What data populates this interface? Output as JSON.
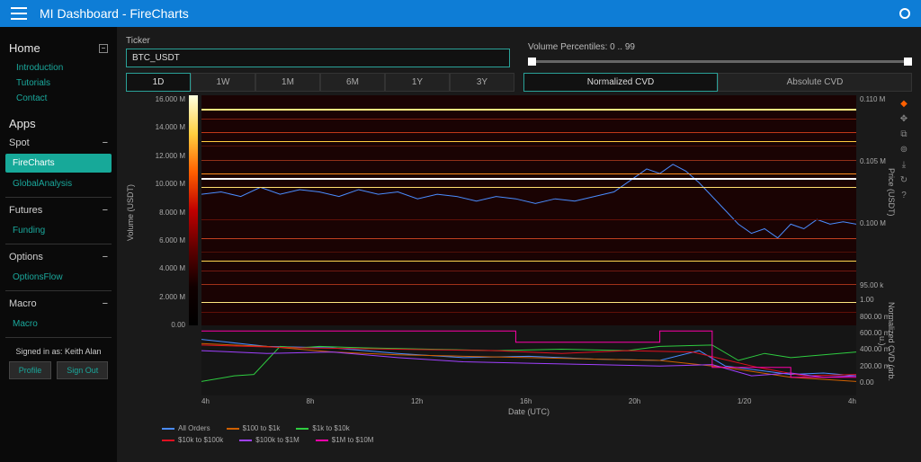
{
  "topbar": {
    "title": "MI Dashboard  -  FireCharts"
  },
  "sidebar": {
    "home_label": "Home",
    "home_links": [
      "Introduction",
      "Tutorials",
      "Contact"
    ],
    "apps_label": "Apps",
    "sections": [
      {
        "title": "Spot",
        "items": [
          {
            "label": "FireCharts",
            "active": true
          },
          {
            "label": "GlobalAnalysis",
            "active": false
          }
        ]
      },
      {
        "title": "Futures",
        "items": [
          {
            "label": "Funding",
            "active": false
          }
        ]
      },
      {
        "title": "Options",
        "items": [
          {
            "label": "OptionsFlow",
            "active": false
          }
        ]
      },
      {
        "title": "Macro",
        "items": [
          {
            "label": "Macro",
            "active": false
          }
        ]
      }
    ],
    "signed_in": "Signed in as: Keith Alan",
    "profile_btn": "Profile",
    "signout_btn": "Sign Out"
  },
  "controls": {
    "ticker_label": "Ticker",
    "ticker_value": "BTC_USDT",
    "vol_label": "Volume Percentiles: 0 .. 99",
    "timeframes": [
      "1D",
      "1W",
      "1M",
      "6M",
      "1Y",
      "3Y"
    ],
    "active_timeframe": "1D",
    "cvd_modes": [
      "Normalized CVD",
      "Absolute CVD"
    ],
    "active_cvd": "Normalized CVD"
  },
  "chart": {
    "left_axis_label": "Volume (USDT)",
    "right_axis_label_top": "Price (USDT)",
    "right_axis_label_bottom": "Normalized CVD (arb. u.)",
    "x_axis_label": "Date (UTC)",
    "volume_ticks": [
      "16.000 M",
      "14.000 M",
      "12.000 M",
      "10.000 M",
      "8.000 M",
      "6.000 M",
      "4.000 M",
      "2.000 M",
      "0.00"
    ],
    "price_ticks": [
      "0.110 M",
      "0.105 M",
      "0.100 M",
      "95.00 k"
    ],
    "cvd_ticks": [
      "1.00",
      "800.00 m",
      "600.00 m",
      "400.00 m",
      "200.00 m",
      "0.00"
    ],
    "x_ticks": [
      "4h",
      "8h",
      "12h",
      "16h",
      "20h",
      "1/20",
      "4h"
    ],
    "colorbar_stops": [
      "#ffffe0",
      "#ffd040",
      "#ff6000",
      "#c00000",
      "#600000",
      "#100000",
      "#000000"
    ],
    "heatmap_bg": "#1a0303",
    "heatmap_lines": [
      {
        "y": 6,
        "c": "#ffec80",
        "h": 2
      },
      {
        "y": 10,
        "c": "#802010",
        "h": 1
      },
      {
        "y": 16,
        "c": "#c03818",
        "h": 1
      },
      {
        "y": 20,
        "c": "#ffcc40",
        "h": 1
      },
      {
        "y": 22,
        "c": "#501008",
        "h": 1
      },
      {
        "y": 28,
        "c": "#903018",
        "h": 1
      },
      {
        "y": 34,
        "c": "#ff9020",
        "h": 1
      },
      {
        "y": 36,
        "c": "#ffffff",
        "h": 2
      },
      {
        "y": 40,
        "c": "#ffe070",
        "h": 1
      },
      {
        "y": 54,
        "c": "#601008",
        "h": 1
      },
      {
        "y": 62,
        "c": "#c04020",
        "h": 1
      },
      {
        "y": 68,
        "c": "#501008",
        "h": 1
      },
      {
        "y": 72,
        "c": "#ffd850",
        "h": 1
      },
      {
        "y": 76,
        "c": "#701810",
        "h": 1
      },
      {
        "y": 82,
        "c": "#a03018",
        "h": 1
      },
      {
        "y": 90,
        "c": "#ffe880",
        "h": 1
      },
      {
        "y": 94,
        "c": "#601008",
        "h": 1
      }
    ],
    "price_line_color": "#4a8cff",
    "price_line": [
      [
        0,
        43
      ],
      [
        3,
        42
      ],
      [
        6,
        44
      ],
      [
        9,
        40
      ],
      [
        12,
        43
      ],
      [
        15,
        41
      ],
      [
        18,
        42
      ],
      [
        21,
        44
      ],
      [
        24,
        41
      ],
      [
        27,
        43
      ],
      [
        30,
        42
      ],
      [
        33,
        45
      ],
      [
        36,
        43
      ],
      [
        39,
        44
      ],
      [
        42,
        46
      ],
      [
        45,
        44
      ],
      [
        48,
        45
      ],
      [
        51,
        47
      ],
      [
        54,
        45
      ],
      [
        57,
        46
      ],
      [
        60,
        44
      ],
      [
        63,
        42
      ],
      [
        66,
        36
      ],
      [
        68,
        32
      ],
      [
        70,
        34
      ],
      [
        72,
        30
      ],
      [
        74,
        33
      ],
      [
        76,
        38
      ],
      [
        78,
        44
      ],
      [
        80,
        50
      ],
      [
        82,
        56
      ],
      [
        84,
        60
      ],
      [
        86,
        58
      ],
      [
        88,
        62
      ],
      [
        90,
        56
      ],
      [
        92,
        58
      ],
      [
        94,
        54
      ],
      [
        96,
        56
      ],
      [
        98,
        55
      ],
      [
        100,
        56
      ]
    ],
    "cvd_series": [
      {
        "color": "#4a8cff",
        "pts": [
          [
            0,
            20
          ],
          [
            10,
            30
          ],
          [
            20,
            32
          ],
          [
            30,
            40
          ],
          [
            40,
            46
          ],
          [
            50,
            44
          ],
          [
            60,
            48
          ],
          [
            70,
            50
          ],
          [
            76,
            36
          ],
          [
            80,
            58
          ],
          [
            85,
            64
          ],
          [
            90,
            70
          ],
          [
            95,
            68
          ],
          [
            100,
            72
          ]
        ]
      },
      {
        "color": "#d06000",
        "pts": [
          [
            0,
            26
          ],
          [
            10,
            30
          ],
          [
            20,
            38
          ],
          [
            30,
            42
          ],
          [
            40,
            44
          ],
          [
            50,
            46
          ],
          [
            60,
            48
          ],
          [
            70,
            50
          ],
          [
            80,
            60
          ],
          [
            90,
            74
          ],
          [
            100,
            80
          ]
        ]
      },
      {
        "color": "#2ecc40",
        "pts": [
          [
            0,
            80
          ],
          [
            5,
            72
          ],
          [
            8,
            70
          ],
          [
            12,
            30
          ],
          [
            15,
            32
          ],
          [
            18,
            30
          ],
          [
            25,
            32
          ],
          [
            35,
            34
          ],
          [
            45,
            36
          ],
          [
            55,
            34
          ],
          [
            65,
            36
          ],
          [
            70,
            30
          ],
          [
            78,
            28
          ],
          [
            82,
            50
          ],
          [
            86,
            40
          ],
          [
            90,
            46
          ],
          [
            95,
            42
          ],
          [
            100,
            38
          ]
        ]
      },
      {
        "color": "#e01020",
        "pts": [
          [
            0,
            28
          ],
          [
            15,
            32
          ],
          [
            30,
            34
          ],
          [
            45,
            36
          ],
          [
            55,
            40
          ],
          [
            65,
            36
          ],
          [
            75,
            38
          ],
          [
            85,
            60
          ],
          [
            92,
            72
          ],
          [
            100,
            70
          ]
        ]
      },
      {
        "color": "#a040ff",
        "pts": [
          [
            0,
            36
          ],
          [
            10,
            40
          ],
          [
            20,
            38
          ],
          [
            30,
            46
          ],
          [
            40,
            52
          ],
          [
            50,
            54
          ],
          [
            60,
            56
          ],
          [
            70,
            58
          ],
          [
            78,
            56
          ],
          [
            84,
            72
          ],
          [
            90,
            68
          ],
          [
            95,
            74
          ],
          [
            100,
            72
          ]
        ]
      },
      {
        "color": "#ff00aa",
        "pts": [
          [
            0,
            8
          ],
          [
            48,
            8
          ],
          [
            48,
            24
          ],
          [
            70,
            24
          ],
          [
            70,
            8
          ],
          [
            78,
            8
          ],
          [
            78,
            60
          ],
          [
            90,
            60
          ],
          [
            90,
            74
          ],
          [
            100,
            74
          ]
        ]
      }
    ],
    "legend": [
      [
        {
          "label": "All Orders",
          "color": "#4a8cff"
        },
        {
          "label": "$100 to $1k",
          "color": "#d06000"
        },
        {
          "label": "$1k to $10k",
          "color": "#2ecc40"
        }
      ],
      [
        {
          "label": "$10k to $100k",
          "color": "#e01020"
        },
        {
          "label": "$100k to $1M",
          "color": "#a040ff"
        },
        {
          "label": "$1M to $10M",
          "color": "#ff00aa"
        }
      ]
    ]
  },
  "colors": {
    "accent": "#2aa198",
    "topbar": "#0e7dd6"
  }
}
